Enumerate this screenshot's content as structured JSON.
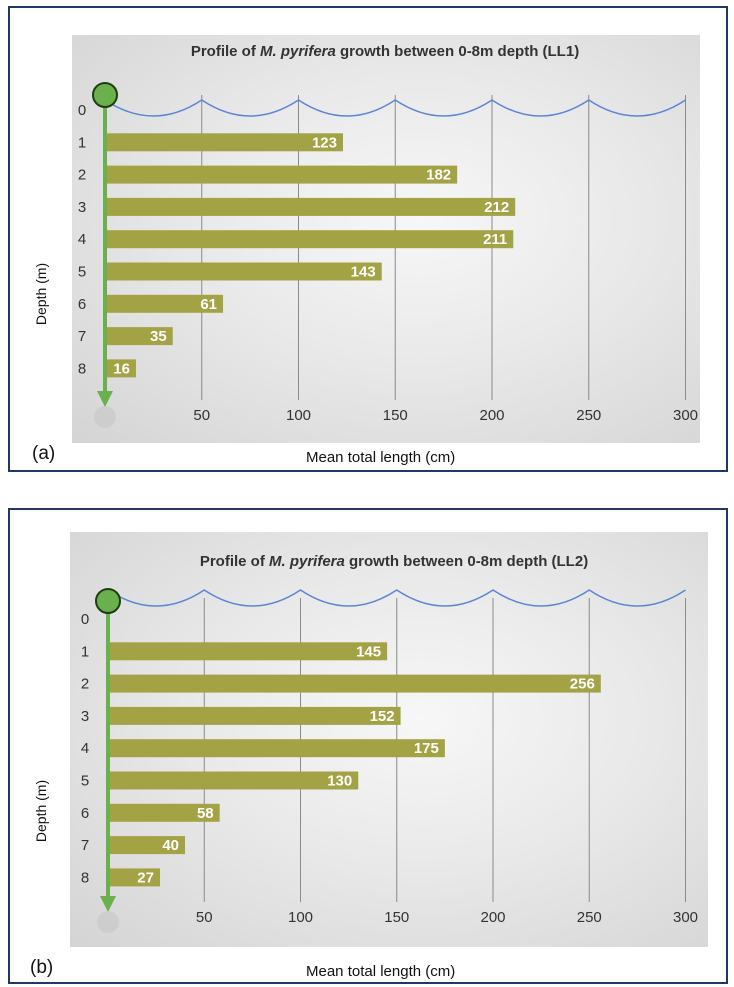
{
  "panels": [
    {
      "label": "(a)",
      "xlabel": "Mean total length (cm)",
      "ylabel": "Depth (m)"
    },
    {
      "label": "(b)",
      "xlabel": "Mean total length (cm)",
      "ylabel": "Depth (m)"
    }
  ],
  "colors": {
    "bar": "#a3a346",
    "bar_label": "#ffffff",
    "wave": "#5b86d6",
    "grid": "#8a8a8a",
    "arrow": "#6ab04c",
    "buoy": "#6ab04c",
    "buoy_edge": "#1e3d14",
    "tick": "#333333",
    "title": "#333333"
  },
  "chart_data": [
    {
      "type": "bar",
      "orientation": "horizontal",
      "title_parts": [
        "Profile of ",
        "M. pyrifera",
        " growth between 0-8m depth (LL1)"
      ],
      "categories": [
        "0",
        "1",
        "2",
        "3",
        "4",
        "5",
        "6",
        "7",
        "8"
      ],
      "values": [
        null,
        123,
        182,
        212,
        211,
        143,
        61,
        35,
        16
      ],
      "data_labels": [
        "",
        "123",
        "182",
        "212",
        "211",
        "143",
        "61",
        "35",
        "16"
      ],
      "xticks": [
        50,
        100,
        150,
        200,
        250,
        300
      ],
      "xlim": [
        0,
        300
      ],
      "xlabel": "Mean total length (cm)",
      "ylabel": "Depth (m)",
      "grid": "vertical"
    },
    {
      "type": "bar",
      "orientation": "horizontal",
      "title_parts": [
        "Profile of ",
        "M. pyrifera",
        " growth between 0-8m depth (LL2)"
      ],
      "categories": [
        "0",
        "1",
        "2",
        "3",
        "4",
        "5",
        "6",
        "7",
        "8"
      ],
      "values": [
        null,
        145,
        256,
        152,
        175,
        130,
        58,
        40,
        27
      ],
      "data_labels": [
        "",
        "145",
        "256",
        "152",
        "175",
        "130",
        "58",
        "40",
        "27"
      ],
      "xticks": [
        50,
        100,
        150,
        200,
        250,
        300
      ],
      "xlim": [
        0,
        300
      ],
      "xlabel": "Mean total length (cm)",
      "ylabel": "Depth (m)",
      "grid": "vertical"
    }
  ]
}
